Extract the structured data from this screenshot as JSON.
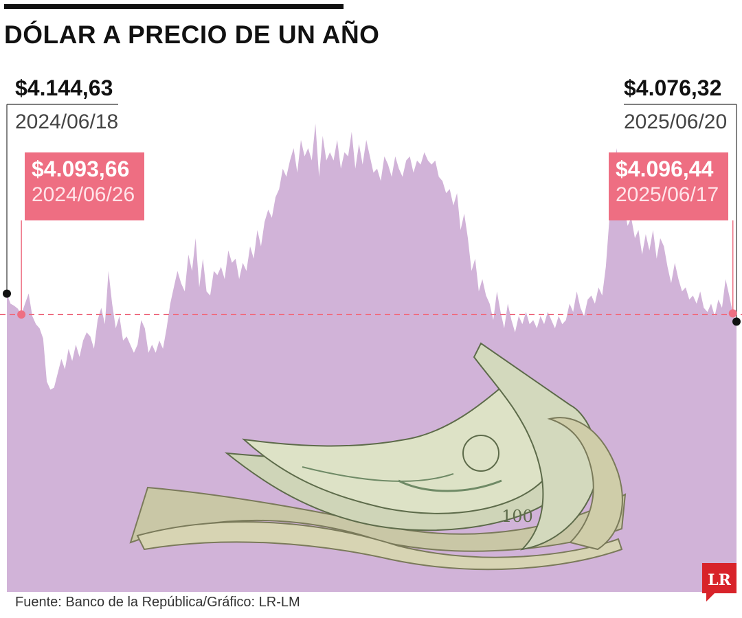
{
  "title": "DÓLAR A PRECIO DE UN AÑO",
  "annotations": {
    "start_value": "$4.144,63",
    "start_date": "2024/06/18",
    "low_left_value": "$4.093,66",
    "low_left_date": "2024/06/26",
    "end_value": "$4.076,32",
    "end_date": "2025/06/20",
    "low_right_value": "$4.096,44",
    "low_right_date": "2025/06/17"
  },
  "source": "Fuente: Banco de la República/Gráfico: LR-LM",
  "logo_text": "LR",
  "colors": {
    "area": "#d1b3d8",
    "reference_line": "#ee6e82",
    "label_box": "#ee6e82",
    "marker": "#111111",
    "logo": "#d8232a"
  },
  "chart_data": {
    "type": "area",
    "title": "DÓLAR A PRECIO DE UN AÑO",
    "xlabel": "",
    "ylabel": "",
    "x_start": "2024/06/18",
    "x_end": "2025/06/20",
    "reference_line_value": 4093.66,
    "ylim": [
      3600,
      4600
    ],
    "series": [
      {
        "values": [
          4144.63,
          4120,
          4115,
          4108,
          4093.66,
          4120,
          4145,
          4090,
          4070,
          4060,
          4035,
          3930,
          3910,
          3915,
          3950,
          3985,
          3960,
          4010,
          3980,
          4020,
          3990,
          4030,
          4050,
          4040,
          4010,
          4080,
          4110,
          4070,
          4200,
          4120,
          4060,
          4090,
          4030,
          4040,
          4020,
          4000,
          4020,
          4080,
          4060,
          4000,
          4020,
          4000,
          4030,
          4010,
          4060,
          4120,
          4160,
          4200,
          4170,
          4150,
          4240,
          4200,
          4280,
          4160,
          4230,
          4150,
          4140,
          4200,
          4190,
          4210,
          4180,
          4250,
          4220,
          4230,
          4180,
          4220,
          4200,
          4260,
          4230,
          4300,
          4260,
          4320,
          4350,
          4330,
          4380,
          4400,
          4450,
          4430,
          4470,
          4500,
          4440,
          4520,
          4480,
          4500,
          4470,
          4560,
          4430,
          4530,
          4470,
          4490,
          4470,
          4520,
          4450,
          4490,
          4480,
          4540,
          4450,
          4510,
          4460,
          4520,
          4480,
          4440,
          4450,
          4420,
          4480,
          4460,
          4430,
          4480,
          4450,
          4430,
          4470,
          4480,
          4440,
          4470,
          4460,
          4490,
          4470,
          4460,
          4470,
          4430,
          4420,
          4390,
          4400,
          4360,
          4390,
          4300,
          4340,
          4280,
          4200,
          4230,
          4150,
          4180,
          4140,
          4120,
          4080,
          4150,
          4100,
          4060,
          4120,
          4080,
          4050,
          4090,
          4070,
          4100,
          4070,
          4080,
          4060,
          4090,
          4070,
          4100,
          4080,
          4060,
          4090,
          4070,
          4080,
          4120,
          4100,
          4150,
          4110,
          4090,
          4130,
          4140,
          4120,
          4160,
          4140,
          4210,
          4330,
          4430,
          4500,
          4400,
          4360,
          4310,
          4330,
          4280,
          4300,
          4240,
          4290,
          4250,
          4300,
          4230,
          4280,
          4260,
          4210,
          4170,
          4220,
          4180,
          4150,
          4160,
          4130,
          4140,
          4120,
          4150,
          4110,
          4100,
          4120,
          4090,
          4130,
          4110,
          4180,
          4140,
          4096.44,
          4076.32
        ]
      }
    ],
    "annotations": [
      {
        "label": "$4.144,63",
        "date": "2024/06/18",
        "value": 4144.63
      },
      {
        "label": "$4.093,66",
        "date": "2024/06/26",
        "value": 4093.66
      },
      {
        "label": "$4.096,44",
        "date": "2025/06/17",
        "value": 4096.44
      },
      {
        "label": "$4.076,32",
        "date": "2025/06/20",
        "value": 4076.32
      }
    ]
  }
}
